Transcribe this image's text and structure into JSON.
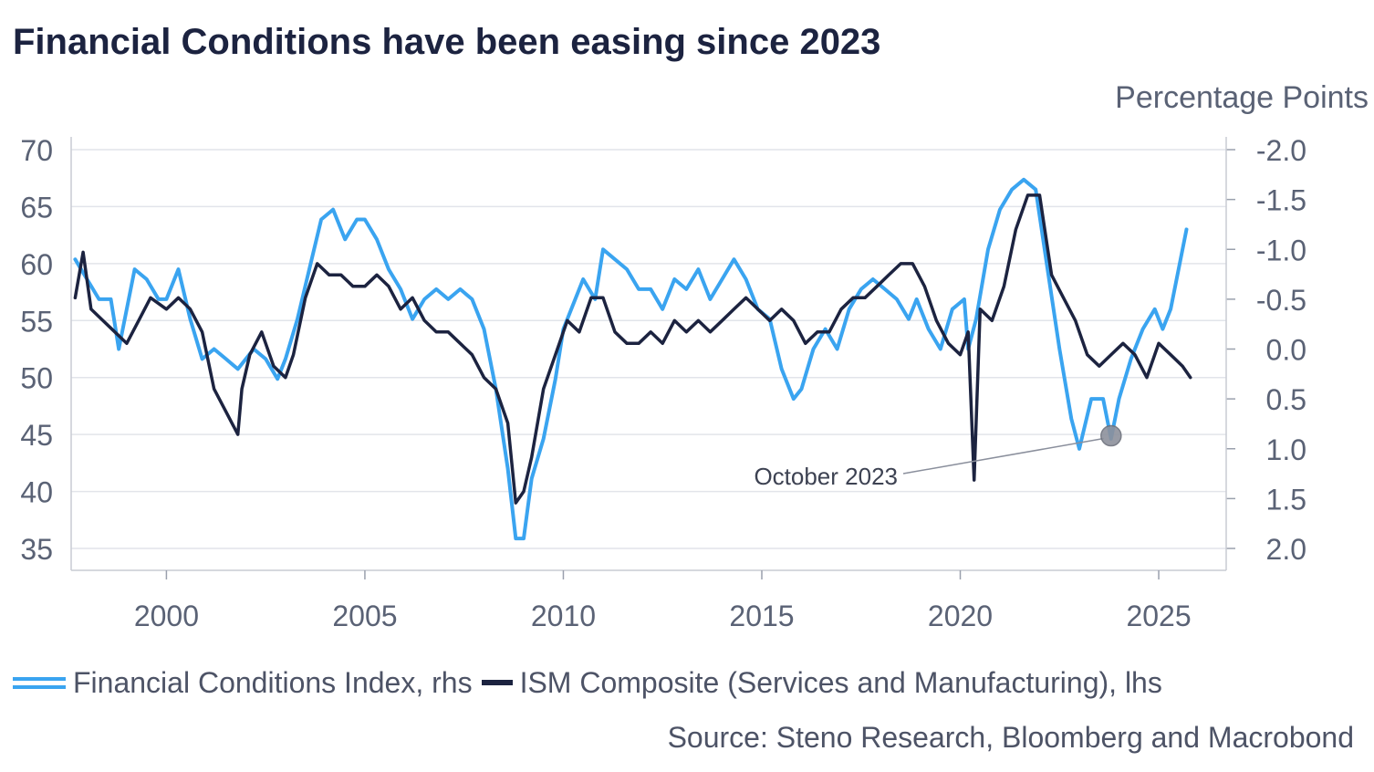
{
  "title": "Financial Conditions have been easing since 2023",
  "source": "Source: Steno Research, Bloomberg and Macrobond",
  "legend": {
    "fci": "Financial Conditions Index, rhs",
    "ism": "ISM Composite (Services and Manufacturing), lhs"
  },
  "colors": {
    "fci": "#3aa4f0",
    "ism": "#1c2340",
    "axis_text": "#5a6275",
    "grid": "#e2e4ea"
  },
  "chart_data": {
    "type": "line",
    "title": "Financial Conditions have been easing since 2023",
    "xlabel": "",
    "ylabel_left": "",
    "ylabel_right": "Percentage Points",
    "xlim": [
      1997.6,
      2026.7
    ],
    "x_ticks": [
      2000,
      2005,
      2010,
      2015,
      2020,
      2025
    ],
    "x_tick_labels": [
      "2000",
      "2005",
      "2010",
      "2015",
      "2020",
      "2025"
    ],
    "y_left_lim": [
      35,
      70
    ],
    "y_left_ticks": [
      70,
      65,
      60,
      55,
      50,
      45,
      40,
      35
    ],
    "y_left_tick_labels": [
      "70",
      "65",
      "60",
      "55",
      "50",
      "45",
      "40",
      "35"
    ],
    "y_right_lim": [
      2.0,
      -2.0
    ],
    "y_right_inverted": true,
    "y_right_ticks": [
      -2.0,
      -1.5,
      -1.0,
      -0.5,
      0.0,
      0.5,
      1.0,
      1.5,
      2.0
    ],
    "y_right_tick_labels": [
      "-2.0",
      "-1.5",
      "-1.0",
      "-0.5",
      "0.0",
      "0.5",
      "1.0",
      "1.5",
      "2.0"
    ],
    "grid": true,
    "legend_position": "bottom",
    "annotation": {
      "text": "October 2023",
      "x": 2023.8,
      "y_right": 0.87
    },
    "series": [
      {
        "name": "Financial Conditions Index, rhs",
        "axis": "right",
        "style": "light blue line",
        "x": [
          1997.7,
          1998.0,
          1998.3,
          1998.6,
          1998.8,
          1999.2,
          1999.5,
          1999.8,
          2000.0,
          2000.3,
          2000.6,
          2000.9,
          2001.2,
          2001.5,
          2001.8,
          2002.2,
          2002.5,
          2002.8,
          2003.0,
          2003.3,
          2003.6,
          2003.9,
          2004.2,
          2004.5,
          2004.8,
          2005.0,
          2005.3,
          2005.6,
          2005.9,
          2006.2,
          2006.5,
          2006.8,
          2007.1,
          2007.4,
          2007.7,
          2008.0,
          2008.3,
          2008.6,
          2008.8,
          2009.0,
          2009.2,
          2009.5,
          2009.8,
          2010.0,
          2010.2,
          2010.5,
          2010.8,
          2011.0,
          2011.3,
          2011.6,
          2011.9,
          2012.2,
          2012.5,
          2012.8,
          2013.1,
          2013.4,
          2013.7,
          2014.0,
          2014.3,
          2014.6,
          2014.9,
          2015.2,
          2015.5,
          2015.8,
          2016.0,
          2016.3,
          2016.6,
          2016.9,
          2017.2,
          2017.5,
          2017.8,
          2018.1,
          2018.4,
          2018.7,
          2018.9,
          2019.2,
          2019.5,
          2019.8,
          2020.1,
          2020.2,
          2020.4,
          2020.7,
          2021.0,
          2021.3,
          2021.6,
          2021.9,
          2022.2,
          2022.5,
          2022.8,
          2023.0,
          2023.3,
          2023.6,
          2023.8,
          2024.0,
          2024.3,
          2024.6,
          2024.9,
          2025.1,
          2025.3,
          2025.5,
          2025.7
        ],
        "values": [
          -0.9,
          -0.7,
          -0.5,
          -0.5,
          0.0,
          -0.8,
          -0.7,
          -0.5,
          -0.5,
          -0.8,
          -0.3,
          0.1,
          0.0,
          0.1,
          0.2,
          0.0,
          0.1,
          0.3,
          0.1,
          -0.3,
          -0.8,
          -1.3,
          -1.4,
          -1.1,
          -1.3,
          -1.3,
          -1.1,
          -0.8,
          -0.6,
          -0.3,
          -0.5,
          -0.6,
          -0.5,
          -0.6,
          -0.5,
          -0.2,
          0.4,
          1.2,
          1.9,
          1.9,
          1.3,
          0.9,
          0.3,
          -0.2,
          -0.4,
          -0.7,
          -0.5,
          -1.0,
          -0.9,
          -0.8,
          -0.6,
          -0.6,
          -0.4,
          -0.7,
          -0.6,
          -0.8,
          -0.5,
          -0.7,
          -0.9,
          -0.7,
          -0.4,
          -0.3,
          0.2,
          0.5,
          0.4,
          0.0,
          -0.2,
          0.0,
          -0.4,
          -0.6,
          -0.7,
          -0.6,
          -0.5,
          -0.3,
          -0.5,
          -0.2,
          0.0,
          -0.4,
          -0.5,
          0.0,
          -0.3,
          -1.0,
          -1.4,
          -1.6,
          -1.7,
          -1.6,
          -0.8,
          0.0,
          0.7,
          1.0,
          0.5,
          0.5,
          0.9,
          0.5,
          0.1,
          -0.2,
          -0.4,
          -0.2,
          -0.4,
          -0.8,
          -1.2
        ]
      },
      {
        "name": "ISM Composite (Services and Manufacturing), lhs",
        "axis": "left",
        "style": "dark navy line",
        "x": [
          1997.7,
          1997.9,
          1998.1,
          1998.4,
          1998.7,
          1999.0,
          1999.3,
          1999.6,
          2000.0,
          2000.3,
          2000.6,
          2000.9,
          2001.2,
          2001.5,
          2001.8,
          2001.9,
          2002.1,
          2002.4,
          2002.7,
          2003.0,
          2003.2,
          2003.5,
          2003.8,
          2004.1,
          2004.4,
          2004.7,
          2005.0,
          2005.3,
          2005.6,
          2005.9,
          2006.2,
          2006.5,
          2006.8,
          2007.1,
          2007.4,
          2007.7,
          2008.0,
          2008.3,
          2008.6,
          2008.8,
          2009.0,
          2009.2,
          2009.5,
          2009.8,
          2010.1,
          2010.4,
          2010.7,
          2011.0,
          2011.3,
          2011.6,
          2011.9,
          2012.2,
          2012.5,
          2012.8,
          2013.1,
          2013.4,
          2013.7,
          2014.0,
          2014.3,
          2014.6,
          2014.9,
          2015.2,
          2015.5,
          2015.8,
          2016.1,
          2016.4,
          2016.7,
          2017.0,
          2017.3,
          2017.6,
          2017.9,
          2018.2,
          2018.5,
          2018.8,
          2019.1,
          2019.4,
          2019.7,
          2020.0,
          2020.2,
          2020.35,
          2020.5,
          2020.8,
          2021.1,
          2021.4,
          2021.7,
          2022.0,
          2022.3,
          2022.6,
          2022.9,
          2023.2,
          2023.5,
          2023.8,
          2024.1,
          2024.4,
          2024.7,
          2025.0,
          2025.3,
          2025.6,
          2025.8
        ],
        "values": [
          57,
          61,
          56,
          55,
          54,
          53,
          55,
          57,
          56,
          57,
          56,
          54,
          49,
          47,
          45,
          49,
          52,
          54,
          51,
          50,
          52,
          57,
          60,
          59,
          59,
          58,
          58,
          59,
          58,
          56,
          57,
          55,
          54,
          54,
          53,
          52,
          50,
          49,
          46,
          39,
          40,
          43,
          49,
          52,
          55,
          54,
          57,
          57,
          54,
          53,
          53,
          54,
          53,
          55,
          54,
          55,
          54,
          55,
          56,
          57,
          56,
          55,
          56,
          55,
          53,
          54,
          54,
          56,
          57,
          57,
          58,
          59,
          60,
          60,
          58,
          55,
          53,
          52,
          54,
          41,
          56,
          55,
          58,
          63,
          66,
          66,
          59,
          57,
          55,
          52,
          51,
          52,
          53,
          52,
          50,
          53,
          52,
          51,
          50
        ]
      }
    ]
  }
}
